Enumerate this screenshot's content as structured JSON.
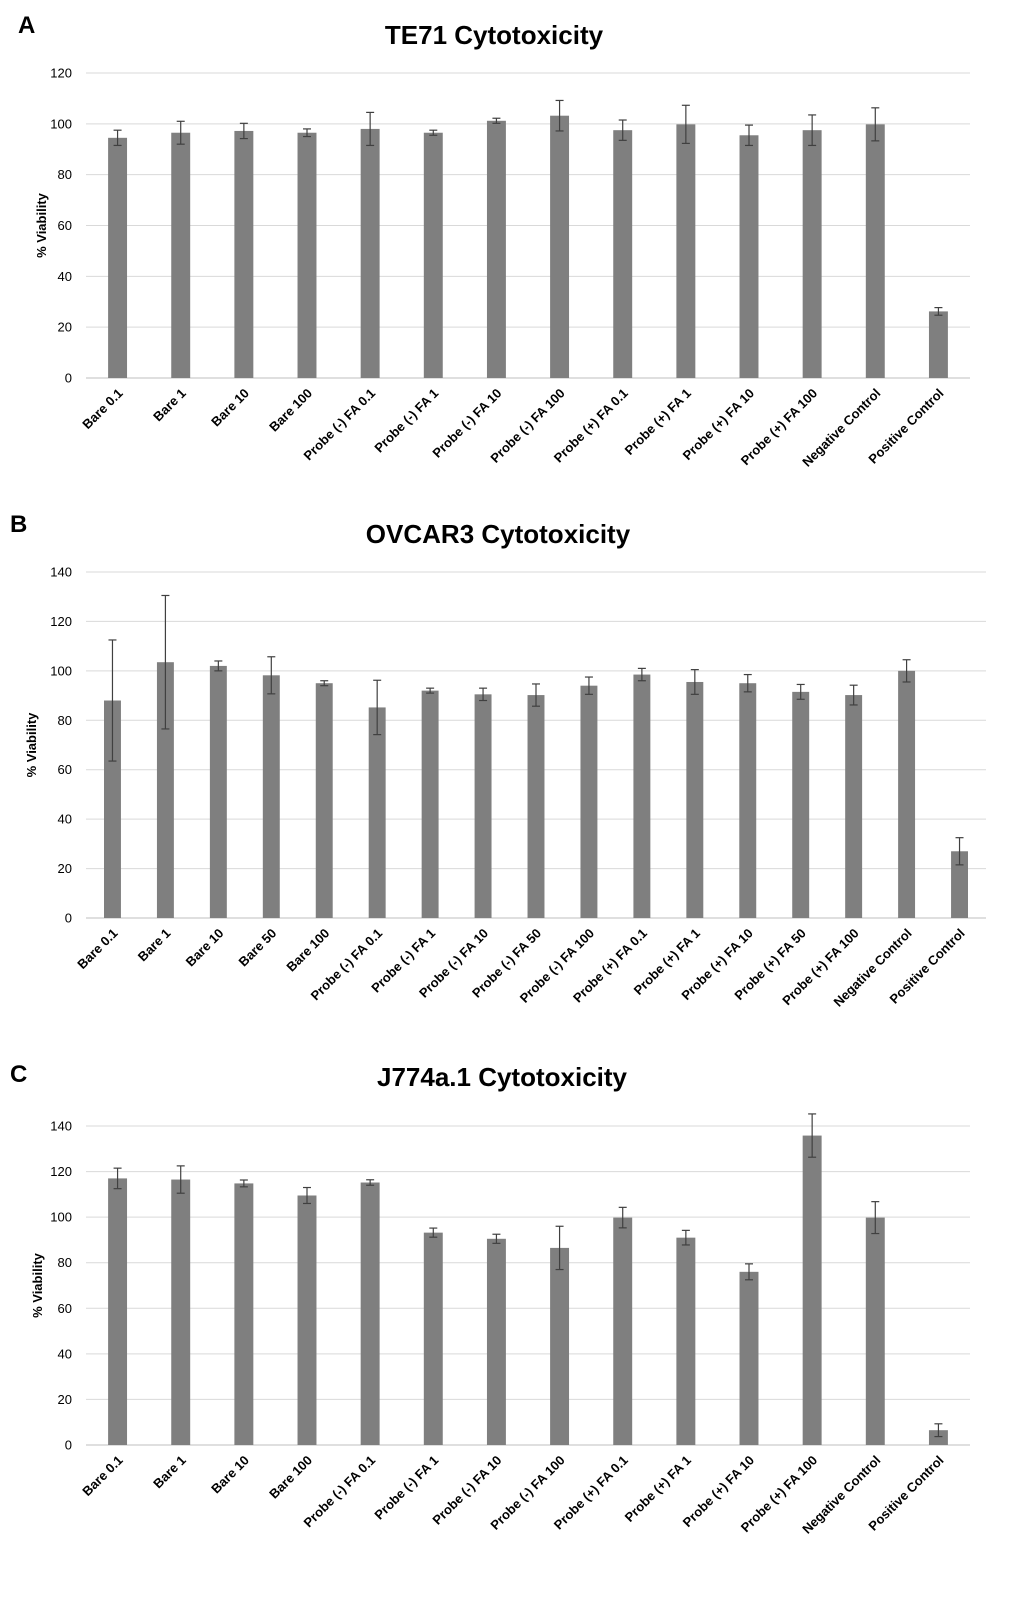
{
  "chart_data": [
    {
      "panel": "A",
      "type": "bar",
      "title": "TE71 Cytotoxicity",
      "xlabel": "",
      "ylabel": "% Viability",
      "ylim": [
        0,
        120
      ],
      "yticks": [
        0,
        20,
        40,
        60,
        80,
        100,
        120
      ],
      "grid": true,
      "bar_color": "#7f7f7f",
      "categories": [
        "Bare 0.1",
        "Bare 1",
        "Bare 10",
        "Bare 100",
        "Probe (-) FA 0.1",
        "Probe (-) FA 1",
        "Probe (-) FA 10",
        "Probe (-) FA 100",
        "Probe (+) FA 0.1",
        "Probe (+) FA 1",
        "Probe (+) FA 10",
        "Probe (+) FA 100",
        "Negative Control",
        "Positive Control"
      ],
      "values": [
        94.5,
        96.5,
        97.2,
        96.5,
        98,
        96.5,
        101.2,
        103.2,
        97.5,
        99.8,
        95.5,
        97.5,
        99.8,
        26.2
      ],
      "errors": [
        3,
        4.5,
        3,
        1.5,
        6.5,
        1,
        1,
        6,
        4,
        7.5,
        4,
        6,
        6.5,
        1.5
      ]
    },
    {
      "panel": "B",
      "type": "bar",
      "title": "OVCAR3 Cytotoxicity",
      "xlabel": "",
      "ylabel": "% Viability",
      "ylim": [
        0,
        140
      ],
      "yticks": [
        0,
        20,
        40,
        60,
        80,
        100,
        120,
        140
      ],
      "grid": true,
      "bar_color": "#7f7f7f",
      "categories": [
        "Bare 0.1",
        "Bare 1",
        "Bare 10",
        "Bare 50",
        "Bare 100",
        "Probe (-) FA 0.1",
        "Probe (-) FA 1",
        "Probe (-) FA 10",
        "Probe (-) FA 50",
        "Probe (-) FA 100",
        "Probe (+) FA 0.1",
        "Probe (+) FA 1",
        "Probe (+) FA 10",
        "Probe (+) FA 50",
        "Probe (+) FA 100",
        "Negative Control",
        "Positive Control"
      ],
      "values": [
        88,
        103.5,
        102,
        98.2,
        95,
        85.2,
        92,
        90.5,
        90.2,
        94,
        98.5,
        95.5,
        95,
        91.5,
        90.2,
        100,
        27
      ],
      "errors": [
        24.5,
        27,
        2,
        7.5,
        1,
        11,
        1,
        2.5,
        4.5,
        3.5,
        2.5,
        5,
        3.5,
        3,
        4,
        4.5,
        5.5
      ]
    },
    {
      "panel": "C",
      "type": "bar",
      "title": "J774a.1 Cytotoxicity",
      "xlabel": "",
      "ylabel": "% Viability",
      "ylim": [
        0,
        140
      ],
      "yticks": [
        0,
        20,
        40,
        60,
        80,
        100,
        120,
        140
      ],
      "grid": true,
      "bar_color": "#7f7f7f",
      "categories": [
        "Bare 0.1",
        "Bare 1",
        "Bare 10",
        "Bare 100",
        "Probe (-) FA 0.1",
        "Probe (-) FA 1",
        "Probe (-) FA 10",
        "Probe (-) FA 100",
        "Probe (+) FA 0.1",
        "Probe (+) FA 1",
        "Probe (+) FA 10",
        "Probe (+) FA 100",
        "Negative Control",
        "Positive Control"
      ],
      "values": [
        117,
        116.5,
        114.8,
        109.5,
        115.2,
        93.2,
        90.5,
        86.5,
        99.8,
        91,
        76,
        135.8,
        99.8,
        6.5
      ],
      "errors": [
        4.5,
        6,
        1.5,
        3.5,
        1.2,
        2,
        2,
        9.5,
        4.5,
        3.2,
        3.5,
        9.5,
        7,
        2.8
      ]
    }
  ]
}
